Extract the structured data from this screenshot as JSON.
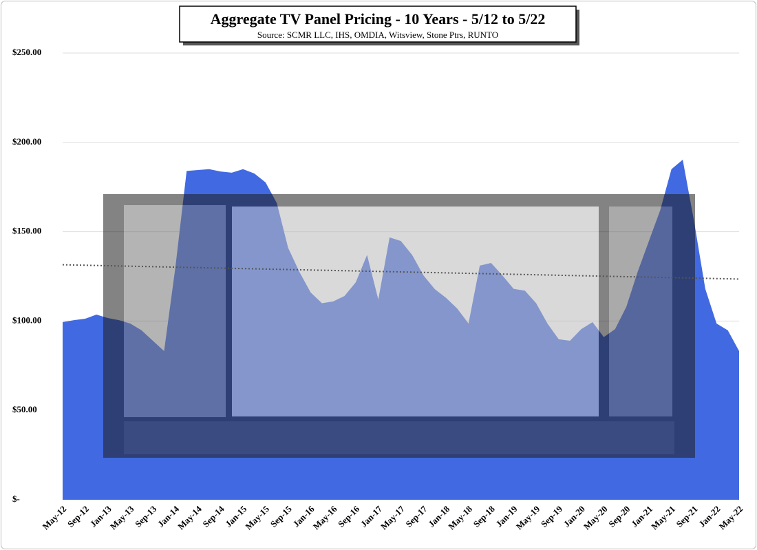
{
  "chart_data": {
    "type": "area",
    "title": "Aggregate TV Panel Pricing - 10 Years - 5/12 to 5/22",
    "subtitle": "Source: SCMR LLC, IHS, OMDIA, Witsview, Stone Ptrs, RUNTO",
    "categories": [
      "May-12",
      null,
      "Sep-12",
      null,
      "Jan-13",
      null,
      "May-13",
      null,
      "Sep-13",
      null,
      "Jan-14",
      null,
      "May-14",
      null,
      "Sep-14",
      null,
      "Jan-15",
      null,
      "May-15",
      null,
      "Sep-15",
      null,
      "Jan-16",
      null,
      "May-16",
      null,
      "Sep-16",
      null,
      "Jan-17",
      null,
      "May-17",
      null,
      "Sep-17",
      null,
      "Jan-18",
      null,
      "May-18",
      null,
      "Sep-18",
      null,
      "Jan-19",
      null,
      "May-19",
      null,
      "Sep-19",
      null,
      "Jan-20",
      null,
      "May-20",
      null,
      "Sep-20",
      null,
      "Jan-21",
      null,
      "May-21",
      null,
      "Sep-21",
      null,
      "Jan-22",
      null,
      "May-22"
    ],
    "values": [
      99.4,
      100.5,
      101.3,
      103.6,
      101.7,
      100.5,
      98.6,
      94.8,
      89,
      83.2,
      130,
      184,
      184.5,
      185,
      183.7,
      183,
      185,
      182.6,
      177.6,
      166,
      141,
      127.5,
      116,
      110,
      111,
      114,
      121.7,
      137,
      112,
      146.8,
      144.8,
      137,
      125.6,
      117.9,
      113,
      107,
      98.6,
      131,
      132.5,
      125.6,
      118,
      117,
      110,
      98.6,
      89.8,
      89,
      95.5,
      99.4,
      91,
      95.5,
      108,
      127.5,
      144.8,
      162,
      185,
      190.3,
      156,
      118,
      98.6,
      94.8,
      83.2
    ],
    "color": "#4169e1",
    "trendline": [
      131.5,
      123.5
    ],
    "trendline_color": "#555555",
    "ylim": [
      0,
      250
    ],
    "yticks": [
      {
        "value": 0,
        "label": "$-"
      },
      {
        "value": 50,
        "label": "$50.00"
      },
      {
        "value": 100,
        "label": "$100.00"
      },
      {
        "value": 150,
        "label": "$150.00"
      },
      {
        "value": 200,
        "label": "$200.00"
      },
      {
        "value": 250,
        "label": "$250.00"
      }
    ],
    "grid": true
  }
}
